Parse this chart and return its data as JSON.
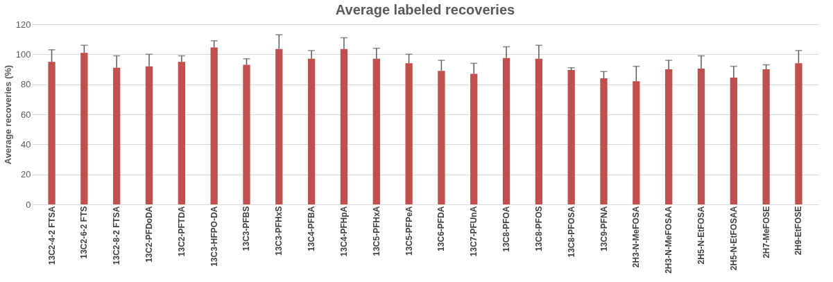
{
  "chart_data": {
    "type": "bar",
    "title": "Average labeled recoveries",
    "ylabel": "Average recoveries (%)",
    "categories": [
      "13C2-4-2 FTSA",
      "13C2-6-2 FTS",
      "13C2-8-2 FTSA",
      "13C2-PFDoDA",
      "13C2-PFTDA",
      "13C3-HFPO-DA",
      "13C3-PFBS",
      "13C3-PFHxS",
      "13C4-PFBA",
      "13C4-PFHpA",
      "13C5-PFHxA",
      "13C5-PFPeA",
      "13C6-PFDA",
      "13C7-PFUnA",
      "13C8-PFOA",
      "13C8-PFOS",
      "13C8-PFOSA",
      "13C9-PFNA",
      "2H3-N-MeFOSA",
      "2H3-N-MeFOSAA",
      "2H5-N-EtFOSA",
      "2H5-N-EtFOSAA",
      "2H7-MeFOSE",
      "2H9-EtFOSE"
    ],
    "values": [
      95,
      101,
      91,
      92,
      95,
      104.5,
      93,
      103.5,
      97,
      103.5,
      97,
      94,
      89,
      87,
      97.5,
      97,
      89.5,
      84,
      82,
      90,
      90.5,
      84.5,
      90,
      94
    ],
    "errors": [
      [
        95,
        103
      ],
      [
        101,
        106
      ],
      [
        91,
        99
      ],
      [
        92,
        100
      ],
      [
        95,
        99
      ],
      [
        104.5,
        109
      ],
      [
        93,
        97
      ],
      [
        103.5,
        113
      ],
      [
        97,
        102.5
      ],
      [
        103.5,
        111
      ],
      [
        97,
        104
      ],
      [
        94,
        100
      ],
      [
        89,
        96
      ],
      [
        87,
        94
      ],
      [
        97.5,
        105
      ],
      [
        97,
        106
      ],
      [
        89.5,
        91
      ],
      [
        84,
        88.5
      ],
      [
        82,
        92
      ],
      [
        90,
        96
      ],
      [
        90.5,
        99
      ],
      [
        84.5,
        92
      ],
      [
        90,
        93
      ],
      [
        94,
        102.5
      ]
    ],
    "color": "#c0504d",
    "ylim": [
      0,
      120
    ],
    "yticks": [
      0,
      20,
      40,
      60,
      80,
      100,
      120
    ],
    "grid": "y"
  }
}
